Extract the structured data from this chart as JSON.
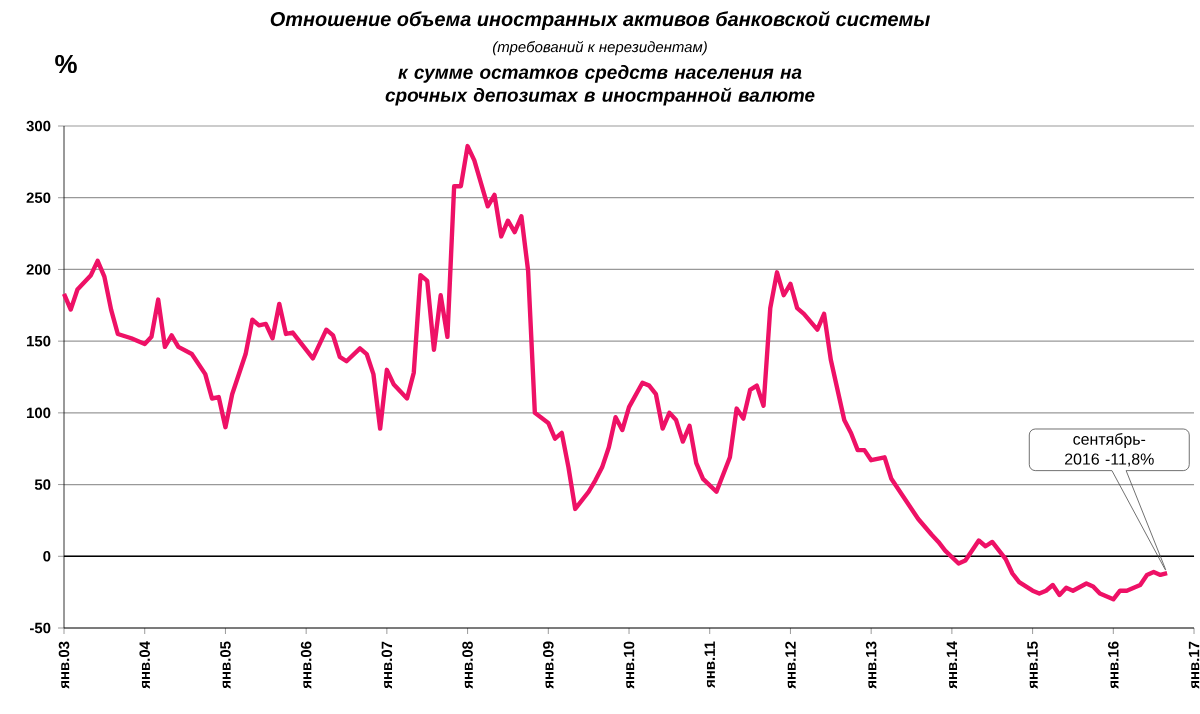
{
  "chart_data": {
    "type": "line",
    "title": "Отношение объема иностранных активов банковской системы",
    "subtitle": "(требований  к нерезидентам)",
    "ylabel": "%",
    "x": [
      "2003-01",
      "2003-02",
      "2003-03",
      "2003-05",
      "2003-06",
      "2003-07",
      "2003-08",
      "2003-09",
      "2003-11",
      "2004-01",
      "2004-02",
      "2004-03",
      "2004-04",
      "2004-05",
      "2004-06",
      "2004-08",
      "2004-10",
      "2004-11",
      "2004-12",
      "2005-01",
      "2005-02",
      "2005-04",
      "2005-05",
      "2005-06",
      "2005-07",
      "2005-08",
      "2005-09",
      "2005-10",
      "2005-11",
      "2006-02",
      "2006-04",
      "2006-05",
      "2006-06",
      "2006-07",
      "2006-09",
      "2006-10",
      "2006-11",
      "2006-12",
      "2007-01",
      "2007-02",
      "2007-04",
      "2007-05",
      "2007-06",
      "2007-07",
      "2007-08",
      "2007-09",
      "2007-10",
      "2007-11",
      "2007-12",
      "2008-01",
      "2008-02",
      "2008-04",
      "2008-05",
      "2008-06",
      "2008-07",
      "2008-08",
      "2008-09",
      "2008-10",
      "2008-11",
      "2009-01",
      "2009-02",
      "2009-03",
      "2009-04",
      "2009-05",
      "2009-07",
      "2009-08",
      "2009-09",
      "2009-10",
      "2009-11",
      "2009-12",
      "2010-01",
      "2010-03",
      "2010-04",
      "2010-05",
      "2010-06",
      "2010-07",
      "2010-08",
      "2010-09",
      "2010-10",
      "2010-11",
      "2010-12",
      "2011-02",
      "2011-04",
      "2011-05",
      "2011-06",
      "2011-07",
      "2011-08",
      "2011-09",
      "2011-10",
      "2011-11",
      "2011-12",
      "2012-01",
      "2012-02",
      "2012-03",
      "2012-05",
      "2012-06",
      "2012-07",
      "2012-09",
      "2012-10",
      "2012-11",
      "2012-12",
      "2013-01",
      "2013-03",
      "2013-04",
      "2013-06",
      "2013-08",
      "2013-10",
      "2013-11",
      "2013-12",
      "2014-02",
      "2014-03",
      "2014-05",
      "2014-06",
      "2014-07",
      "2014-09",
      "2014-10",
      "2014-11",
      "2015-01",
      "2015-02",
      "2015-03",
      "2015-04",
      "2015-05",
      "2015-06",
      "2015-07",
      "2015-09",
      "2015-10",
      "2015-11",
      "2016-01",
      "2016-02",
      "2016-03",
      "2016-05",
      "2016-06",
      "2016-07",
      "2016-08",
      "2016-09"
    ],
    "series": [
      {
        "color": "#ee1166",
        "values": [
          183,
          172,
          186,
          196,
          206,
          195,
          172,
          155,
          152,
          148,
          153,
          179,
          146,
          154,
          146,
          141,
          127,
          110,
          111,
          90,
          113,
          141,
          165,
          161,
          162,
          152,
          176,
          155,
          156,
          138,
          158,
          154,
          139,
          136,
          145,
          141,
          127,
          89,
          130,
          120,
          110,
          128,
          196,
          192,
          144,
          182,
          153,
          258,
          258,
          286,
          276,
          244,
          252,
          223,
          234,
          226,
          237,
          199,
          100,
          93,
          82,
          86,
          62,
          33,
          45,
          53,
          62,
          76,
          97,
          88,
          104,
          121,
          119,
          113,
          89,
          100,
          95,
          80,
          91,
          65,
          54,
          45,
          69,
          103,
          96,
          116,
          119,
          105,
          173,
          198,
          182,
          190,
          173,
          169,
          158,
          169,
          137,
          95,
          86,
          74,
          74,
          67,
          69,
          54,
          40,
          26,
          15,
          10,
          4,
          -5,
          -3,
          11,
          7,
          10,
          -2,
          -12,
          -18,
          -24,
          -26,
          -24,
          -20,
          -27,
          -22,
          -24,
          -19,
          -21,
          -26,
          -30,
          -24,
          -24,
          -20,
          -13,
          -11,
          -13,
          -11.8
        ]
      }
    ],
    "xlim": [
      "2003-01",
      "2017-01"
    ],
    "xticks": [
      {
        "value": "2003-01",
        "label": "янв.03"
      },
      {
        "value": "2004-01",
        "label": "янв.04"
      },
      {
        "value": "2005-01",
        "label": "янв.05"
      },
      {
        "value": "2006-01",
        "label": "янв.06"
      },
      {
        "value": "2007-01",
        "label": "янв.07"
      },
      {
        "value": "2008-01",
        "label": "янв.08"
      },
      {
        "value": "2009-01",
        "label": "янв.09"
      },
      {
        "value": "2010-01",
        "label": "янв.10"
      },
      {
        "value": "2011-01",
        "label": "янв.11"
      },
      {
        "value": "2012-01",
        "label": "янв.12"
      },
      {
        "value": "2013-01",
        "label": "янв.13"
      },
      {
        "value": "2014-01",
        "label": "янв.14"
      },
      {
        "value": "2015-01",
        "label": "янв.15"
      },
      {
        "value": "2016-01",
        "label": "янв.16"
      },
      {
        "value": "2017-01",
        "label": "янв.17"
      }
    ],
    "ylim": [
      -50,
      300
    ],
    "yticks": [
      -50,
      0,
      50,
      100,
      150,
      200,
      250,
      300
    ],
    "grid": "y",
    "ref_lines": [
      {
        "axis": "y",
        "value": 0,
        "color": "#000000"
      }
    ],
    "annotations": [
      "к сумме остатков средств населения на срочных депозитах в иностранной валюте",
      "сентябрь-2016 -11,8%"
    ]
  }
}
